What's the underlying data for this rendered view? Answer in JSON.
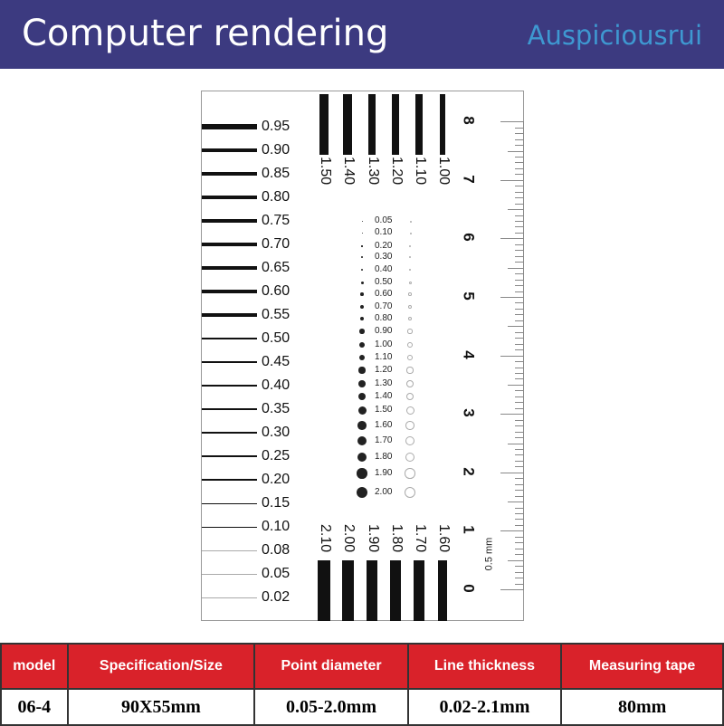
{
  "header": {
    "title": "Computer rendering",
    "watermark": "Auspiciousrui",
    "bg": "#3c3a80"
  },
  "card": {
    "line_labels": [
      "0.95",
      "0.90",
      "0.85",
      "0.80",
      "0.75",
      "0.70",
      "0.65",
      "0.60",
      "0.55",
      "0.50",
      "0.45",
      "0.40",
      "0.35",
      "0.30",
      "0.25",
      "0.20",
      "0.15",
      "0.10",
      "0.08",
      "0.05",
      "0.02"
    ],
    "top_bars": [
      "1.50",
      "1.40",
      "1.30",
      "1.20",
      "1.10",
      "1.00"
    ],
    "bottom_bars": [
      "2.10",
      "2.00",
      "1.90",
      "1.80",
      "1.70",
      "1.60"
    ],
    "dots": [
      "0.05",
      "0.10",
      "0.20",
      "0.30",
      "0.40",
      "0.50",
      "0.60",
      "0.70",
      "0.80",
      "0.90",
      "1.00",
      "1.10",
      "1.20",
      "1.30",
      "1.40",
      "1.50",
      "1.60",
      "1.70",
      "1.80",
      "1.90",
      "2.00"
    ],
    "ruler": {
      "numbers": [
        "0",
        "1",
        "2",
        "3",
        "4",
        "5",
        "6",
        "7",
        "8"
      ],
      "unit_label": "0.5 mm"
    }
  },
  "table": {
    "headers": [
      "model",
      "Specification/Size",
      "Point diameter",
      "Line thickness",
      "Measuring tape"
    ],
    "values": [
      "06-4",
      "90X55mm",
      "0.05-2.0mm",
      "0.02-2.1mm",
      "80mm"
    ],
    "header_color": "#d9222a"
  }
}
